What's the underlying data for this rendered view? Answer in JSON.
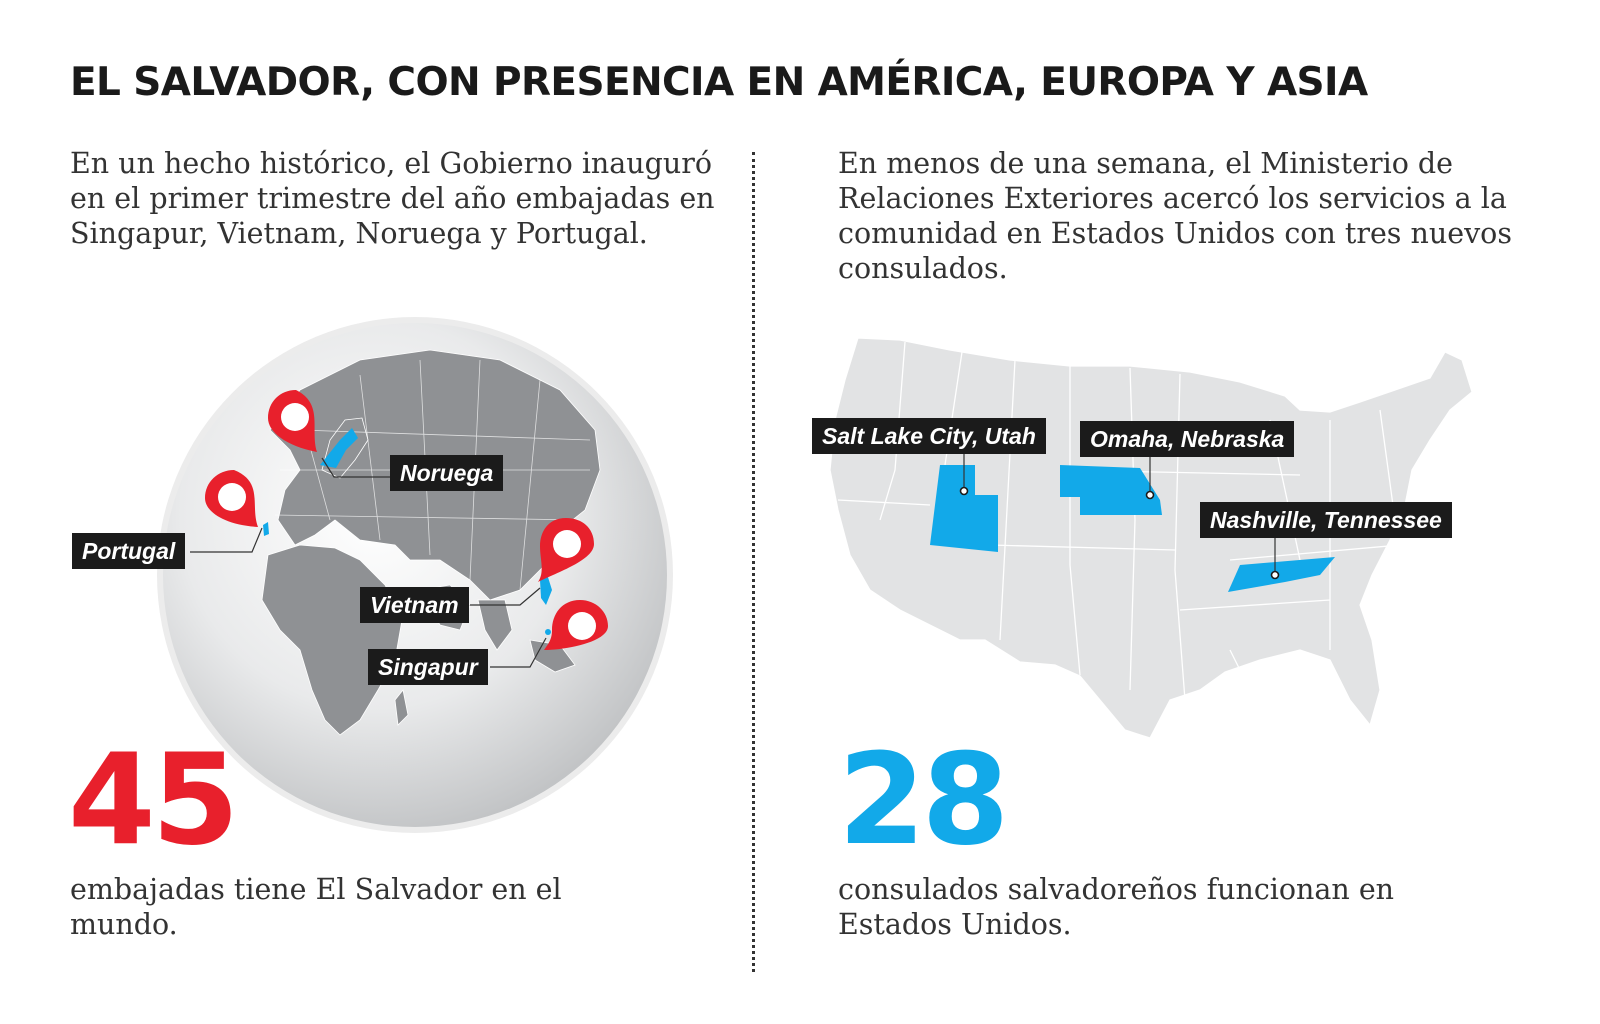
{
  "title": "EL SALVADOR, CON PRESENCIA  EN AMÉRICA, EUROPA Y ASIA",
  "left": {
    "intro": "En un hecho histórico, el Gobierno inauguró en el primer trimestre del año embajadas en Singapur, Vietnam, Noruega y Portugal.",
    "labels": {
      "noruega": "Noruega",
      "portugal": "Portugal",
      "vietnam": "Vietnam",
      "singapur": "Singapur"
    },
    "stat_number": "45",
    "stat_description": "embajadas tiene El Salvador en el mundo."
  },
  "right": {
    "intro": "En menos de una semana, el Ministerio de Relaciones Exteriores acercó los servicios a la comunidad en Estados Unidos con tres nuevos consulados.",
    "labels": {
      "utah": "Salt Lake City, Utah",
      "nebraska": "Omaha, Nebraska",
      "tennessee": "Nashville, Tennessee"
    },
    "stat_number": "28",
    "stat_description": "consulados salvadoreños funcionan en Estados Unidos."
  },
  "colors": {
    "embassy_red": "#e8202c",
    "consulate_blue": "#12a9e9",
    "label_background": "#1b1b1b",
    "land_gray": "#e2e3e4"
  },
  "icons": [
    "map-pin-icon"
  ]
}
